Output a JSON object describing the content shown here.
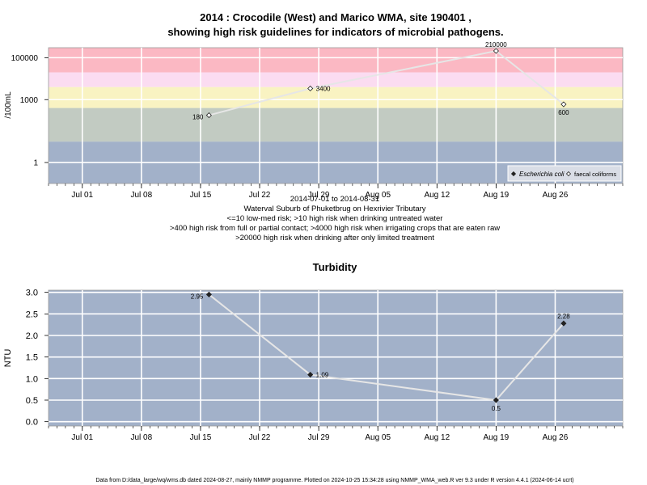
{
  "chart_data": [
    {
      "type": "line",
      "title_line1": "2014 : Crocodile (West) and Marico WMA, site 190401 ,",
      "title_line2": "showing high risk guidelines for indicators of microbial pathogens.",
      "ylabel": "/100mL",
      "y_scale": "log",
      "ylim": [
        0.1,
        300000
      ],
      "y_ticks": [
        1,
        1000,
        100000
      ],
      "y_tick_labels": [
        "1",
        "1000",
        "100000"
      ],
      "x_ticks": [
        "Jul 01",
        "Jul 08",
        "Jul 15",
        "Jul 22",
        "Jul 29",
        "Aug 05",
        "Aug 12",
        "Aug 19",
        "Aug 26"
      ],
      "x_tick_dates": [
        "2014-07-01",
        "2014-07-08",
        "2014-07-15",
        "2014-07-22",
        "2014-07-29",
        "2014-08-05",
        "2014-08-12",
        "2014-08-19",
        "2014-08-26"
      ],
      "xlim": [
        "2014-06-27",
        "2014-09-03"
      ],
      "bands": [
        {
          "from": 0.1,
          "to": 10,
          "color": "#a2b1c9"
        },
        {
          "from": 10,
          "to": 400,
          "color": "#c2cbc2"
        },
        {
          "from": 400,
          "to": 4000,
          "color": "#f9f3c2"
        },
        {
          "from": 4000,
          "to": 20000,
          "color": "#fbdcf1"
        },
        {
          "from": 20000,
          "to": 300000,
          "color": "#fbb8c3"
        }
      ],
      "series": [
        {
          "name": "faecal coliforms",
          "marker": "open-diamond",
          "x": [
            "2014-07-16",
            "2014-07-28",
            "2014-08-19",
            "2014-08-27"
          ],
          "values": [
            180,
            3400,
            210000,
            600
          ],
          "labels": [
            "180",
            "3400",
            "210000",
            "600"
          ]
        }
      ],
      "legend": [
        {
          "name": "Escherichia coli",
          "marker": "filled-diamond",
          "italic": true
        },
        {
          "name": "faecal coliforms",
          "marker": "open-diamond",
          "italic": false
        }
      ],
      "legend_position": "bottom-right",
      "grid": true
    },
    {
      "type": "line",
      "title": "Turbidity",
      "ylabel": "NTU",
      "ylim": [
        -0.1,
        3.05
      ],
      "y_ticks": [
        0,
        0.5,
        1,
        1.5,
        2,
        2.5,
        3
      ],
      "y_tick_labels": [
        "0.0",
        "0.5",
        "1.0",
        "1.5",
        "2.0",
        "2.5",
        "3.0"
      ],
      "x_ticks": [
        "Jul 01",
        "Jul 08",
        "Jul 15",
        "Jul 22",
        "Jul 29",
        "Aug 05",
        "Aug 12",
        "Aug 19",
        "Aug 26"
      ],
      "x_tick_dates": [
        "2014-07-01",
        "2014-07-08",
        "2014-07-15",
        "2014-07-22",
        "2014-07-29",
        "2014-08-05",
        "2014-08-12",
        "2014-08-19",
        "2014-08-26"
      ],
      "xlim": [
        "2014-06-27",
        "2014-09-03"
      ],
      "background": "#a2b1c9",
      "series": [
        {
          "name": "",
          "marker": "filled-diamond",
          "x": [
            "2014-07-16",
            "2014-07-28",
            "2014-08-19",
            "2014-08-27"
          ],
          "values": [
            2.95,
            1.09,
            0.5,
            2.28
          ],
          "labels": [
            "2.95",
            "1.09",
            "0.5",
            "2.28"
          ]
        }
      ],
      "grid": true
    }
  ],
  "notes": [
    "2014-07-01 to 2014-08-31",
    "Waterval Suburb of Phuketbrug on Hexrivier Tributary",
    "<=10 low-med risk; >10 high risk when drinking untreated water",
    ">400 high risk from full or partial contact; >4000 high risk when irrigating crops that are eaten raw",
    ">20000 high risk when drinking after only limited treatment"
  ],
  "footer": "Data from D:/data_large/wq/wms.db dated 2024-08-27, mainly NMMP programme. Plotted on 2024-10-25 15:34:28 using NMMP_WMA_web.R ver 9.3 under R version 4.4.1 (2024-06-14 ucrt)"
}
